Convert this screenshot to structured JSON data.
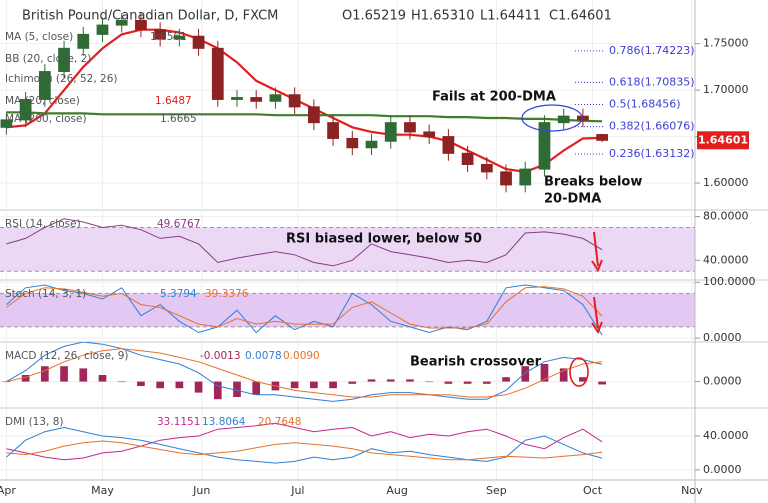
{
  "chart_data": [
    {
      "type": "candlestick",
      "title": "British Pound/Canadian Dollar, D, FXCM",
      "ohlc_labels": [
        "O1.65219",
        "H1.65310",
        "L1.64411",
        "C1.64601"
      ],
      "legend_extra": [
        {
          "name": "MA (5, close)",
          "value": 1.6561
        },
        {
          "name": "BB (20, close, 2)"
        },
        {
          "name": "Ichimoku (26, 52, 26)"
        }
      ],
      "x": [
        0,
        6,
        12,
        18,
        24,
        30,
        36,
        42,
        48,
        54,
        60,
        66,
        72,
        78,
        84,
        90,
        96,
        102,
        108,
        114,
        120,
        126,
        132,
        138,
        144,
        150,
        156,
        162,
        168,
        174,
        180,
        186
      ],
      "open": [
        1.66,
        1.668,
        1.69,
        1.72,
        1.745,
        1.76,
        1.77,
        1.775,
        1.765,
        1.755,
        1.758,
        1.745,
        1.69,
        1.692,
        1.688,
        1.695,
        1.682,
        1.665,
        1.648,
        1.638,
        1.645,
        1.665,
        1.655,
        1.65,
        1.632,
        1.62,
        1.612,
        1.598,
        1.615,
        1.665,
        1.672,
        1.65219
      ],
      "high": [
        1.676,
        1.698,
        1.728,
        1.753,
        1.768,
        1.778,
        1.783,
        1.783,
        1.773,
        1.766,
        1.766,
        1.753,
        1.7,
        1.7,
        1.703,
        1.703,
        1.69,
        1.673,
        1.656,
        1.653,
        1.673,
        1.673,
        1.663,
        1.658,
        1.64,
        1.628,
        1.62,
        1.623,
        1.673,
        1.68,
        1.68,
        1.6531
      ],
      "low": [
        1.652,
        1.66,
        1.682,
        1.712,
        1.737,
        1.752,
        1.762,
        1.757,
        1.747,
        1.747,
        1.737,
        1.682,
        1.682,
        1.68,
        1.68,
        1.674,
        1.657,
        1.64,
        1.63,
        1.63,
        1.637,
        1.647,
        1.642,
        1.624,
        1.612,
        1.604,
        1.59,
        1.59,
        1.607,
        1.657,
        1.66,
        1.64411
      ],
      "close": [
        1.668,
        1.69,
        1.72,
        1.745,
        1.76,
        1.77,
        1.775,
        1.765,
        1.755,
        1.758,
        1.745,
        1.69,
        1.692,
        1.688,
        1.695,
        1.682,
        1.665,
        1.648,
        1.638,
        1.645,
        1.665,
        1.655,
        1.65,
        1.632,
        1.62,
        1.612,
        1.598,
        1.615,
        1.665,
        1.672,
        1.668,
        1.64601
      ],
      "up_color": "#2f6b35",
      "down_color": "#8e2323",
      "series": [
        {
          "name": "MA (20, close)",
          "color": "#e41d1d",
          "width": 2.2,
          "values": [
            1.66,
            1.662,
            1.675,
            1.7,
            1.725,
            1.745,
            1.76,
            1.765,
            1.765,
            1.762,
            1.755,
            1.745,
            1.73,
            1.71,
            1.7,
            1.69,
            1.68,
            1.67,
            1.66,
            1.655,
            1.652,
            1.652,
            1.65,
            1.645,
            1.635,
            1.625,
            1.615,
            1.612,
            1.62,
            1.635,
            1.648,
            1.6487
          ]
        },
        {
          "name": "MA (200, close)",
          "color": "#3f7d2a",
          "width": 2.2,
          "values": [
            1.676,
            1.676,
            1.675,
            1.675,
            1.675,
            1.674,
            1.674,
            1.674,
            1.674,
            1.674,
            1.674,
            1.674,
            1.674,
            1.674,
            1.673,
            1.673,
            1.673,
            1.673,
            1.673,
            1.673,
            1.672,
            1.672,
            1.672,
            1.671,
            1.671,
            1.67,
            1.67,
            1.669,
            1.669,
            1.668,
            1.667,
            1.6665
          ]
        }
      ],
      "fib_levels": [
        {
          "label": "0.786(1.74223)",
          "value": 1.74223
        },
        {
          "label": "0.618(1.70835)",
          "value": 1.70835
        },
        {
          "label": "0.5(1.68456)",
          "value": 1.68456
        },
        {
          "label": "0.382(1.66076)",
          "value": 1.66076
        },
        {
          "label": "0.236(1.63132)",
          "value": 1.63132
        }
      ],
      "fib_color": "#3d3dd6",
      "last_price": 1.64601,
      "last_price_color": "#e41d1d",
      "annotations": [
        "Fails at 200-DMA",
        "Breaks below",
        "20-DMA"
      ],
      "xlim": [
        -2,
        215
      ],
      "ylim": [
        1.571,
        1.797
      ],
      "yticks": [
        {
          "value": 1.6,
          "label": "1.60000"
        },
        {
          "value": 1.65,
          "label": "1.65000"
        },
        {
          "value": 1.7,
          "label": "1.70000"
        },
        {
          "value": 1.75,
          "label": "1.75000"
        }
      ]
    },
    {
      "type": "line",
      "title": "RSI (14, close)",
      "x": [
        0,
        6,
        12,
        18,
        24,
        30,
        36,
        42,
        48,
        54,
        60,
        66,
        72,
        78,
        84,
        90,
        96,
        102,
        108,
        114,
        120,
        126,
        132,
        138,
        144,
        150,
        156,
        162,
        168,
        174,
        180,
        186
      ],
      "series": [
        {
          "color": "#8a3a8a",
          "width": 1,
          "last_label": "49.6767",
          "values": [
            55,
            60,
            70,
            78,
            75,
            70,
            72,
            68,
            60,
            62,
            55,
            38,
            42,
            45,
            48,
            45,
            38,
            35,
            40,
            55,
            48,
            45,
            42,
            38,
            40,
            38,
            45,
            65,
            66,
            64,
            60,
            49.6767
          ]
        }
      ],
      "band": [
        30,
        70
      ],
      "band_color": "#ead8f5",
      "annotations": [
        "RSI biased lower, below 50"
      ],
      "xlim": [
        -2,
        215
      ],
      "ylim": [
        22,
        86
      ],
      "yticks": [
        {
          "value": 40,
          "label": "40.0000"
        },
        {
          "value": 80,
          "label": "80.0000"
        }
      ]
    },
    {
      "type": "line",
      "title": "Stoch (14, 3, 1)",
      "x": [
        0,
        6,
        12,
        18,
        24,
        30,
        36,
        42,
        48,
        54,
        60,
        66,
        72,
        78,
        84,
        90,
        96,
        102,
        108,
        114,
        120,
        126,
        132,
        138,
        144,
        150,
        156,
        162,
        168,
        174,
        180,
        186
      ],
      "series": [
        {
          "color": "#2f7fd4",
          "width": 1,
          "last_label": "5.3794",
          "values": [
            60,
            90,
            95,
            85,
            80,
            70,
            90,
            40,
            60,
            30,
            10,
            20,
            50,
            10,
            40,
            15,
            30,
            20,
            80,
            60,
            30,
            20,
            10,
            20,
            15,
            30,
            90,
            95,
            90,
            85,
            60,
            5.3794
          ]
        },
        {
          "color": "#e5722a",
          "width": 1,
          "last_label": "39.3376",
          "values": [
            55,
            80,
            90,
            88,
            82,
            75,
            80,
            60,
            55,
            40,
            25,
            20,
            35,
            25,
            30,
            25,
            25,
            25,
            55,
            65,
            45,
            25,
            18,
            18,
            18,
            25,
            65,
            90,
            92,
            88,
            75,
            39.3376
          ]
        }
      ],
      "band": [
        20,
        80
      ],
      "band_color": "#e3c8f3",
      "xlim": [
        -2,
        215
      ],
      "ylim": [
        -7,
        104
      ],
      "yticks": [
        {
          "value": 0,
          "label": "0.0000"
        },
        {
          "value": 100,
          "label": "100.0000"
        }
      ]
    },
    {
      "type": "line",
      "title": "MACD (12, 26, close, 9)",
      "x": [
        0,
        6,
        12,
        18,
        24,
        30,
        36,
        42,
        48,
        54,
        60,
        66,
        72,
        78,
        84,
        90,
        96,
        102,
        108,
        114,
        120,
        126,
        132,
        138,
        144,
        150,
        156,
        162,
        168,
        174,
        180,
        186
      ],
      "series": [
        {
          "style": "bar",
          "color": "#a3265a",
          "last_label": "-0.0013",
          "values": [
            0,
            0.003,
            0.007,
            0.007,
            0.006,
            0.003,
            0,
            -0.002,
            -0.003,
            -0.003,
            -0.005,
            -0.008,
            -0.007,
            -0.006,
            -0.004,
            -0.003,
            -0.003,
            -0.003,
            -0.001,
            0.001,
            0.001,
            0.001,
            0,
            -0.001,
            -0.001,
            -0.001,
            0.002,
            0.007,
            0.008,
            0.006,
            0.002,
            -0.0013
          ]
        },
        {
          "color": "#2f7fd4",
          "width": 1,
          "last_label": "0.0078",
          "values": [
            0,
            0.005,
            0.012,
            0.016,
            0.018,
            0.017,
            0.015,
            0.012,
            0.01,
            0.008,
            0.004,
            -0.002,
            -0.004,
            -0.006,
            -0.006,
            -0.007,
            -0.008,
            -0.009,
            -0.008,
            -0.006,
            -0.005,
            -0.005,
            -0.006,
            -0.007,
            -0.008,
            -0.008,
            -0.004,
            0.004,
            0.009,
            0.011,
            0.01,
            0.0078
          ]
        },
        {
          "color": "#e5722a",
          "width": 1,
          "last_label": "0.0090",
          "values": [
            0,
            0.002,
            0.005,
            0.009,
            0.012,
            0.014,
            0.015,
            0.014,
            0.013,
            0.011,
            0.009,
            0.006,
            0.003,
            0,
            -0.002,
            -0.004,
            -0.005,
            -0.006,
            -0.007,
            -0.007,
            -0.006,
            -0.006,
            -0.006,
            -0.006,
            -0.007,
            -0.007,
            -0.006,
            -0.003,
            0.001,
            0.005,
            0.008,
            0.009
          ]
        }
      ],
      "annotations": [
        "Bearish crossover"
      ],
      "xlim": [
        -2,
        215
      ],
      "ylim": [
        -0.012,
        0.018
      ],
      "yticks": [
        {
          "value": 0,
          "label": "0.0000"
        }
      ]
    },
    {
      "type": "line",
      "title": "DMI (13, 8)",
      "x": [
        0,
        6,
        12,
        18,
        24,
        30,
        36,
        42,
        48,
        54,
        60,
        66,
        72,
        78,
        84,
        90,
        96,
        102,
        108,
        114,
        120,
        126,
        132,
        138,
        144,
        150,
        156,
        162,
        168,
        174,
        180,
        186
      ],
      "series": [
        {
          "color": "#c2288e",
          "width": 1,
          "last_label": "33.1151",
          "values": [
            25,
            20,
            15,
            12,
            14,
            20,
            22,
            28,
            35,
            38,
            40,
            48,
            50,
            52,
            55,
            50,
            45,
            48,
            50,
            40,
            45,
            38,
            42,
            40,
            45,
            48,
            40,
            30,
            25,
            38,
            48,
            33.1151
          ]
        },
        {
          "color": "#2f7fd4",
          "width": 1,
          "last_label": "13.8064",
          "values": [
            15,
            35,
            45,
            50,
            45,
            40,
            38,
            35,
            30,
            25,
            20,
            15,
            12,
            10,
            8,
            10,
            15,
            12,
            15,
            25,
            20,
            22,
            18,
            15,
            12,
            10,
            15,
            35,
            40,
            30,
            20,
            13.8064
          ]
        },
        {
          "color": "#e5722a",
          "width": 1,
          "last_label": "20.7648",
          "values": [
            20,
            18,
            22,
            28,
            32,
            34,
            32,
            28,
            24,
            20,
            18,
            20,
            22,
            26,
            30,
            32,
            30,
            28,
            25,
            20,
            18,
            16,
            14,
            12,
            12,
            14,
            16,
            15,
            14,
            16,
            18,
            20.7648
          ]
        }
      ],
      "xlim": [
        -2,
        215
      ],
      "ylim": [
        -12,
        73
      ],
      "yticks": [
        {
          "value": 0,
          "label": "0.0000"
        },
        {
          "value": 40,
          "label": "40.0000"
        }
      ],
      "xticks": [
        {
          "value": 0,
          "label": "Apr"
        },
        {
          "value": 30,
          "label": "May"
        },
        {
          "value": 61,
          "label": "Jun"
        },
        {
          "value": 91,
          "label": "Jul"
        },
        {
          "value": 122,
          "label": "Aug"
        },
        {
          "value": 153,
          "label": "Sep"
        },
        {
          "value": 183,
          "label": "Oct"
        },
        {
          "value": 214,
          "label": "Nov"
        }
      ]
    }
  ]
}
